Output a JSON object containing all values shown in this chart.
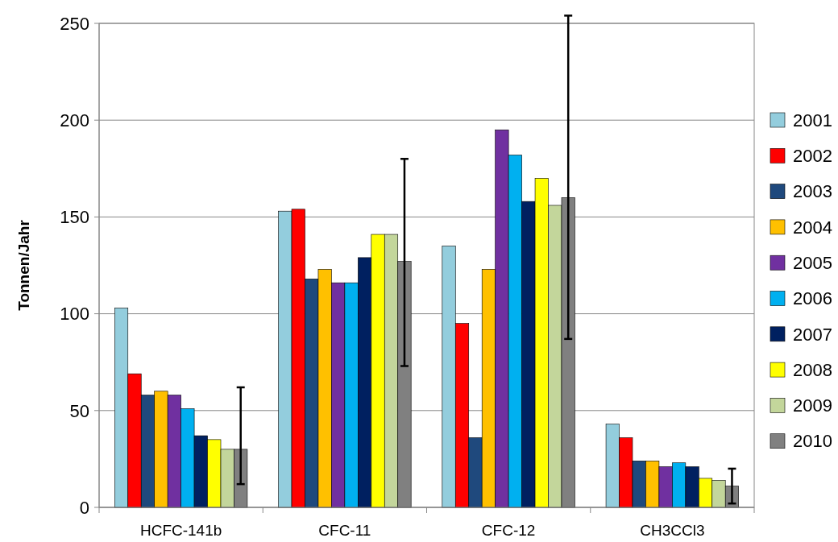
{
  "chart_data": {
    "type": "bar",
    "ylabel": "Tonnen/Jahr",
    "categories": [
      "HCFC-141b",
      "CFC-11",
      "CFC-12",
      "CH3CCl3"
    ],
    "ylim": [
      0,
      250
    ],
    "yticks": [
      0,
      50,
      100,
      150,
      200,
      250
    ],
    "grid": "y",
    "legend": "right",
    "series": [
      {
        "name": "2001",
        "color": "#93cddd",
        "values": [
          103,
          153,
          135,
          43
        ]
      },
      {
        "name": "2002",
        "color": "#ff0000",
        "values": [
          69,
          154,
          95,
          36
        ]
      },
      {
        "name": "2003",
        "color": "#1f497d",
        "values": [
          58,
          118,
          36,
          24
        ]
      },
      {
        "name": "2004",
        "color": "#ffc000",
        "values": [
          60,
          123,
          123,
          24
        ]
      },
      {
        "name": "2005",
        "color": "#7030a0",
        "values": [
          58,
          116,
          195,
          21
        ]
      },
      {
        "name": "2006",
        "color": "#00b0f0",
        "values": [
          51,
          116,
          182,
          23
        ]
      },
      {
        "name": "2007",
        "color": "#002060",
        "values": [
          37,
          129,
          158,
          21
        ]
      },
      {
        "name": "2008",
        "color": "#ffff00",
        "values": [
          35,
          141,
          170,
          15
        ]
      },
      {
        "name": "2009",
        "color": "#c3d69b",
        "values": [
          30,
          141,
          156,
          14
        ]
      },
      {
        "name": "2010",
        "color": "#808080",
        "values": [
          30,
          127,
          160,
          11
        ],
        "errors": [
          [
            12,
            62
          ],
          [
            73,
            180
          ],
          [
            87,
            254
          ],
          [
            2,
            20
          ]
        ]
      }
    ]
  }
}
